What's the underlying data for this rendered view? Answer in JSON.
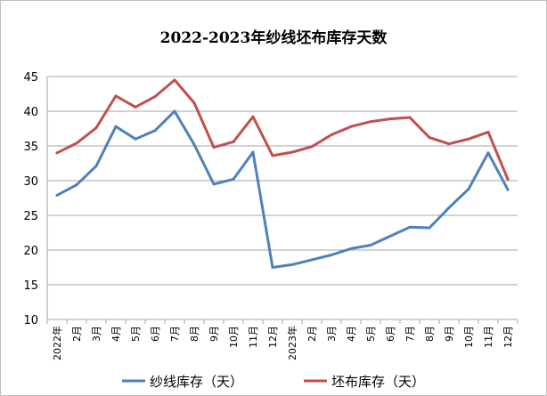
{
  "chart_data": {
    "type": "line",
    "title": "2022-2023年纱线坯布库存天数",
    "categories": [
      "2022年",
      "2月",
      "3月",
      "4月",
      "5月",
      "6月",
      "7月",
      "8月",
      "9月",
      "10月",
      "11月",
      "12月",
      "2023年",
      "2月",
      "3月",
      "4月",
      "5月",
      "6月",
      "7月",
      "8月",
      "9月",
      "10月",
      "11月",
      "12月"
    ],
    "ylim": [
      10,
      45
    ],
    "yticks": [
      10,
      15,
      20,
      25,
      30,
      35,
      40,
      45
    ],
    "grid": true,
    "legend_position": "bottom",
    "series": [
      {
        "name": "纱线库存（天）",
        "color": "#4f81bd",
        "values": [
          27.9,
          29.4,
          32.1,
          37.8,
          36.0,
          37.2,
          40.0,
          35.2,
          29.5,
          30.2,
          34.1,
          17.5,
          17.9,
          18.6,
          19.3,
          20.2,
          20.7,
          22.0,
          23.3,
          23.2,
          26.1,
          28.8,
          34.0,
          28.7
        ]
      },
      {
        "name": "坯布库存（天）",
        "color": "#c0504d",
        "values": [
          34.0,
          35.4,
          37.6,
          42.2,
          40.6,
          42.1,
          44.5,
          41.2,
          34.8,
          35.6,
          39.2,
          33.6,
          34.1,
          34.9,
          36.6,
          37.8,
          38.5,
          38.9,
          39.1,
          36.2,
          35.3,
          36.0,
          37.0,
          30.2
        ]
      }
    ]
  }
}
